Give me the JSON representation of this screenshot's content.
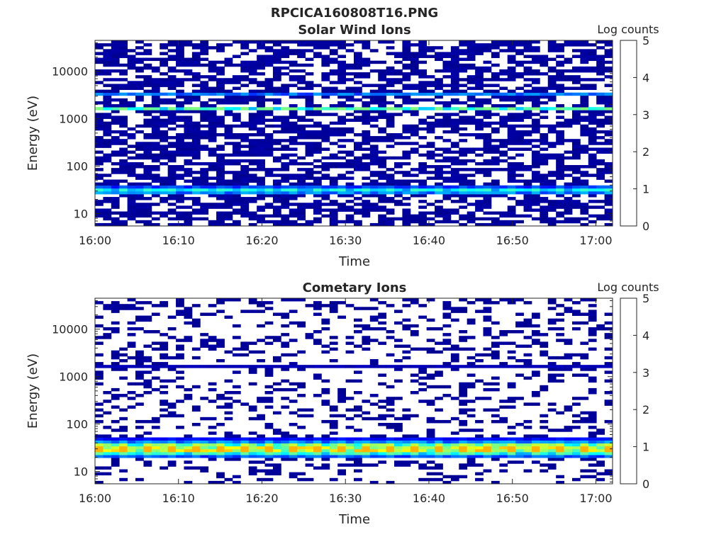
{
  "figure_title": "RPCICA160808T16.PNG",
  "colors": {
    "colormap": [
      "#00008f",
      "#0000ff",
      "#0080ff",
      "#00ffff",
      "#80ff80",
      "#ffff00",
      "#ff8000",
      "#ff0000",
      "#800000"
    ],
    "background": "#ffffff"
  },
  "chart_data": [
    {
      "type": "heatmap",
      "title": "Solar Wind Ions",
      "xlabel": "Time",
      "ylabel": "Energy (eV)",
      "x_ticks": [
        "16:00",
        "16:10",
        "16:20",
        "16:30",
        "16:40",
        "16:50",
        "17:00"
      ],
      "y_ticks": [
        "10",
        "100",
        "1000",
        "10000"
      ],
      "y_scale": "log",
      "ylim_eV": [
        5.5,
        45000
      ],
      "time_range_min": [
        0,
        62
      ],
      "colorbar": {
        "label": "Log counts",
        "ticks": [
          "0",
          "1",
          "2",
          "3",
          "4",
          "5"
        ],
        "range": [
          0,
          5
        ]
      },
      "bands": [
        {
          "energy_eV": 33,
          "log_counts": 1.7
        },
        {
          "energy_eV": 28,
          "log_counts": 1.2
        },
        {
          "energy_eV": 38,
          "log_counts": 0.9
        },
        {
          "energy_eV": 1700,
          "log_counts": 2.0
        },
        {
          "energy_eV": 3500,
          "log_counts": 1.1
        }
      ],
      "background_level": 0.15,
      "background_density": 0.6
    },
    {
      "type": "heatmap",
      "title": "Cometary Ions",
      "xlabel": "Time",
      "ylabel": "Energy (eV)",
      "x_ticks": [
        "16:00",
        "16:10",
        "16:20",
        "16:30",
        "16:40",
        "16:50",
        "17:00"
      ],
      "y_ticks": [
        "10",
        "100",
        "1000",
        "10000"
      ],
      "y_scale": "log",
      "ylim_eV": [
        5.5,
        45000
      ],
      "time_range_min": [
        0,
        62
      ],
      "colorbar": {
        "label": "Log counts",
        "ticks": [
          "0",
          "1",
          "2",
          "3",
          "4",
          "5"
        ],
        "range": [
          0,
          5
        ]
      },
      "bands": [
        {
          "energy_eV": 30,
          "log_counts": 2.8
        },
        {
          "energy_eV": 34,
          "log_counts": 2.3
        },
        {
          "energy_eV": 26,
          "log_counts": 1.9
        },
        {
          "energy_eV": 40,
          "log_counts": 1.2
        },
        {
          "energy_eV": 21,
          "log_counts": 1.0
        },
        {
          "energy_eV": 46,
          "log_counts": 0.6
        },
        {
          "energy_eV": 1700,
          "log_counts": 0.2
        }
      ],
      "background_level": 0.1,
      "background_density": 0.25
    }
  ]
}
